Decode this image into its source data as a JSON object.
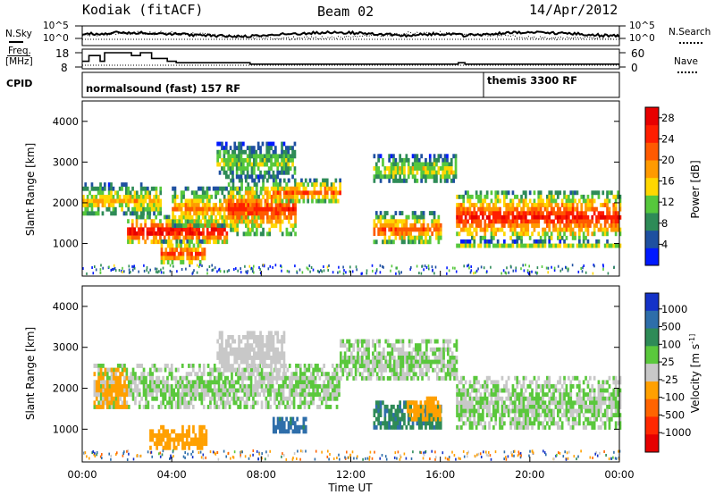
{
  "header": {
    "site": "Kodiak (fitACF)",
    "beam": "Beam 02",
    "date": "14/Apr/2012"
  },
  "noise_panel": {
    "left_label": "N.Sky",
    "right_label": "N.Search",
    "ticks_left": [
      "10^5",
      "10^0"
    ],
    "ticks_right": [
      "10^5",
      "10^0"
    ]
  },
  "freq_panel": {
    "left_label_1": "Freq.",
    "left_label_2": "[MHz]",
    "right_label": "Nave",
    "ticks_left": [
      "18",
      "8"
    ],
    "ticks_right": [
      "60",
      "0"
    ]
  },
  "cpid": {
    "label": "CPID",
    "modes": [
      {
        "name": "normalsound (fast) 157 RF",
        "start_hour": 0
      },
      {
        "name": "themis 3300 RF",
        "start_hour": 18
      }
    ]
  },
  "x_axis": {
    "label": "Time UT",
    "ticks": [
      "00:00",
      "04:00",
      "08:00",
      "12:00",
      "16:00",
      "20:00",
      "00:00"
    ]
  },
  "colors": {
    "power": [
      "#0019ff",
      "#1e50a0",
      "#2e8b57",
      "#56c83c",
      "#ffd700",
      "#ff9a00",
      "#ff5a00",
      "#ff1e00",
      "#e80000"
    ],
    "velocity": [
      "#1432c8",
      "#2e6eaa",
      "#2e8b57",
      "#5ac83c",
      "#c8c8c8",
      "#c8c8c8",
      "#ffa000",
      "#ff6400",
      "#ff2800",
      "#e60000"
    ],
    "ground_scatter": "#c8c8c8"
  },
  "chart_data": [
    {
      "type": "heatmap",
      "name": "power",
      "ylabel": "Slant Range [km]",
      "colorbar_label": "Power [dB]",
      "x_range_hours": [
        0,
        24
      ],
      "ylim": [
        200,
        4500
      ],
      "y_ticks": [
        1000,
        2000,
        3000,
        4000
      ],
      "colorbar_ticks": [
        "4",
        "8",
        "12",
        "16",
        "20",
        "24",
        "28"
      ],
      "colorbar_range": [
        0,
        30
      ],
      "echo_regions": [
        {
          "t0": 0.0,
          "t1": 3.5,
          "r_lo": 1700,
          "r_hi": 2500,
          "peak": 16
        },
        {
          "t0": 2.0,
          "t1": 6.5,
          "r_lo": 1000,
          "r_hi": 1700,
          "peak": 26
        },
        {
          "t0": 3.5,
          "t1": 5.5,
          "r_lo": 500,
          "r_hi": 1100,
          "peak": 22
        },
        {
          "t0": 4.0,
          "t1": 8.0,
          "r_lo": 1400,
          "r_hi": 2400,
          "peak": 18
        },
        {
          "t0": 6.5,
          "t1": 9.5,
          "r_lo": 1200,
          "r_hi": 2600,
          "peak": 22
        },
        {
          "t0": 6.0,
          "t1": 9.5,
          "r_lo": 2600,
          "r_hi": 3500,
          "peak": 12
        },
        {
          "t0": 8.5,
          "t1": 11.5,
          "r_lo": 2000,
          "r_hi": 2600,
          "peak": 20
        },
        {
          "t0": 13.0,
          "t1": 16.0,
          "r_lo": 1000,
          "r_hi": 1800,
          "peak": 20
        },
        {
          "t0": 13.0,
          "t1": 16.7,
          "r_lo": 2500,
          "r_hi": 3200,
          "peak": 14
        },
        {
          "t0": 16.7,
          "t1": 24.0,
          "r_lo": 1100,
          "r_hi": 2300,
          "peak": 24
        },
        {
          "t0": 16.7,
          "t1": 24.0,
          "r_lo": 900,
          "r_hi": 1100,
          "peak": 12
        }
      ]
    },
    {
      "type": "heatmap",
      "name": "velocity",
      "ylabel": "Slant Range [km]",
      "colorbar_label": "Velocity [m s^-1]",
      "x_range_hours": [
        0,
        24
      ],
      "ylim": [
        200,
        4500
      ],
      "y_ticks": [
        1000,
        2000,
        3000,
        4000
      ],
      "colorbar_ticks": [
        "1000",
        "500",
        "100",
        "25",
        "-25",
        "-100",
        "-500",
        "-1000"
      ],
      "echo_regions": [
        {
          "t0": 0.5,
          "t1": 11.5,
          "r_lo": 1500,
          "r_hi": 2600,
          "v": 0
        },
        {
          "t0": 3.0,
          "t1": 5.5,
          "r_lo": 500,
          "r_hi": 1100,
          "v": -300
        },
        {
          "t0": 0.5,
          "t1": 2.0,
          "r_lo": 1500,
          "r_hi": 2500,
          "v": -150
        },
        {
          "t0": 6.0,
          "t1": 9.0,
          "r_lo": 2400,
          "r_hi": 3400,
          "v": -60
        },
        {
          "t0": 8.5,
          "t1": 10.0,
          "r_lo": 900,
          "r_hi": 1300,
          "v": 150
        },
        {
          "t0": 13.0,
          "t1": 16.0,
          "r_lo": 1000,
          "r_hi": 1700,
          "v": 80
        },
        {
          "t0": 14.5,
          "t1": 16.0,
          "r_lo": 1200,
          "r_hi": 1800,
          "v": -250
        },
        {
          "t0": 11.5,
          "t1": 16.7,
          "r_lo": 2200,
          "r_hi": 3200,
          "v": 0
        },
        {
          "t0": 16.7,
          "t1": 24.0,
          "r_lo": 1000,
          "r_hi": 2300,
          "v": 0
        }
      ]
    }
  ]
}
